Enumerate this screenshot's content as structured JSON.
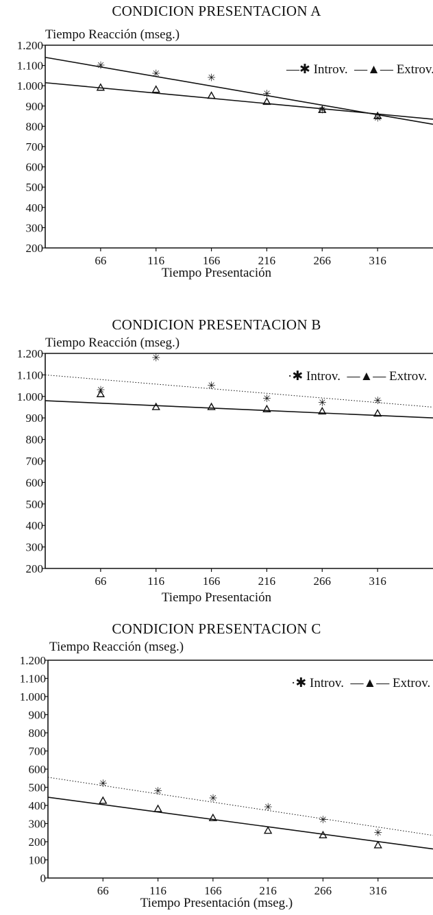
{
  "chart_data": [
    {
      "type": "scatter",
      "title": "CONDICION PRESENTACION A",
      "ylabel": "Tiempo Reacción (mseg.)",
      "xlabel": "Tiempo Presentación",
      "x": [
        66,
        116,
        166,
        216,
        266,
        316
      ],
      "x_tick_labels": [
        "66",
        "116",
        "166",
        "216",
        "266",
        "316"
      ],
      "ylim": [
        200,
        1200
      ],
      "y_ticks": [
        200,
        300,
        400,
        500,
        600,
        700,
        800,
        900,
        1000,
        1100,
        1200
      ],
      "y_tick_labels": [
        "200",
        "300",
        "400",
        "500",
        "600",
        "700",
        "800",
        "900",
        "1.000",
        "1.100",
        "1.200"
      ],
      "legend": {
        "position": "top-right"
      },
      "series": [
        {
          "name": "Introv.",
          "marker": "star",
          "values": [
            1100,
            1060,
            1040,
            960,
            880,
            840
          ],
          "trend": [
            1140,
            810
          ],
          "trend_style": "solid"
        },
        {
          "name": "Extrov.",
          "marker": "triangle",
          "values": [
            990,
            980,
            950,
            920,
            880,
            850
          ],
          "trend": [
            1015,
            835
          ],
          "trend_style": "solid"
        }
      ]
    },
    {
      "type": "scatter",
      "title": "CONDICION PRESENTACION B",
      "ylabel": "Tiempo Reacción (mseg.)",
      "xlabel": "Tiempo Presentación",
      "x": [
        66,
        116,
        166,
        216,
        266,
        316
      ],
      "x_tick_labels": [
        "66",
        "116",
        "166",
        "216",
        "266",
        "316"
      ],
      "ylim": [
        200,
        1200
      ],
      "y_ticks": [
        200,
        300,
        400,
        500,
        600,
        700,
        800,
        900,
        1000,
        1100,
        1200
      ],
      "y_tick_labels": [
        "200",
        "300",
        "400",
        "500",
        "600",
        "700",
        "800",
        "900",
        "1.000",
        "1.100",
        "1.200"
      ],
      "legend": {
        "position": "top-right"
      },
      "series": [
        {
          "name": "Introv.",
          "marker": "star",
          "values": [
            1030,
            1180,
            1050,
            990,
            970,
            980
          ],
          "trend": [
            1100,
            950
          ],
          "trend_style": "dotted"
        },
        {
          "name": "Extrov.",
          "marker": "triangle",
          "values": [
            1010,
            950,
            950,
            940,
            930,
            920
          ],
          "trend": [
            980,
            900
          ],
          "trend_style": "solid"
        }
      ]
    },
    {
      "type": "scatter",
      "title": "CONDICION PRESENTACION C",
      "ylabel": "Tiempo Reacción (mseg.)",
      "xlabel": "Tiempo Presentación (mseg.)",
      "x": [
        66,
        116,
        166,
        216,
        266,
        316
      ],
      "x_tick_labels": [
        "66",
        "116",
        "166",
        "216",
        "266",
        "316"
      ],
      "ylim": [
        0,
        1200
      ],
      "y_ticks": [
        0,
        100,
        200,
        300,
        400,
        500,
        600,
        700,
        800,
        900,
        1000,
        1100,
        1200
      ],
      "y_tick_labels": [
        "0",
        "100",
        "200",
        "300",
        "400",
        "500",
        "600",
        "700",
        "800",
        "900",
        "1.000",
        "1.100",
        "1.200"
      ],
      "legend": {
        "position": "top-right"
      },
      "series": [
        {
          "name": "Introv.",
          "marker": "star",
          "values": [
            520,
            480,
            440,
            390,
            320,
            250
          ],
          "trend": [
            555,
            235
          ],
          "trend_style": "dotted"
        },
        {
          "name": "Extrov.",
          "marker": "triangle",
          "values": [
            425,
            380,
            330,
            260,
            235,
            180
          ],
          "trend": [
            445,
            160
          ],
          "trend_style": "solid"
        }
      ]
    }
  ]
}
